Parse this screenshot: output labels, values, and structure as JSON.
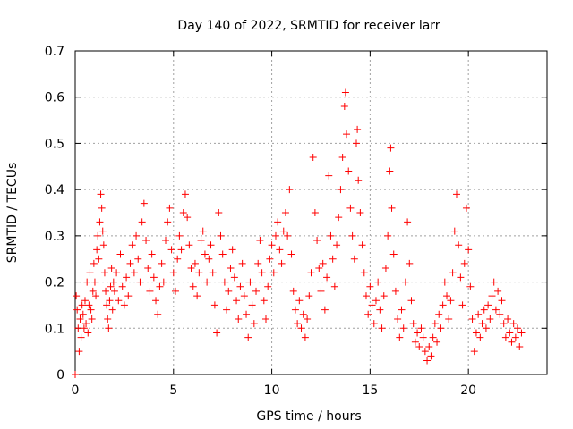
{
  "chart_data": {
    "type": "scatter",
    "title": "Day 140 of 2022, SRMTID for receiver larr",
    "xlabel": "GPS time / hours",
    "ylabel": "SRMTID / TECUs",
    "xlim": [
      0,
      24
    ],
    "ylim": [
      0,
      0.7
    ],
    "xticks": [
      0,
      5,
      10,
      15,
      20
    ],
    "yticks": [
      0,
      0.1,
      0.2,
      0.3,
      0.4,
      0.5,
      0.6,
      0.7
    ],
    "xtick_labels": [
      "0",
      "5",
      "10",
      "15",
      "20"
    ],
    "ytick_labels": [
      "0",
      "0.1",
      "0.2",
      "0.3",
      "0.4",
      "0.5",
      "0.6",
      "0.7"
    ],
    "grid": true,
    "marker": "+",
    "color": "#ff0000",
    "series": [
      {
        "name": "SRMTID",
        "points": [
          [
            0.0,
            0.0
          ],
          [
            0.05,
            0.17
          ],
          [
            0.1,
            0.14
          ],
          [
            0.15,
            0.1
          ],
          [
            0.2,
            0.05
          ],
          [
            0.25,
            0.12
          ],
          [
            0.3,
            0.08
          ],
          [
            0.35,
            0.15
          ],
          [
            0.4,
            0.13
          ],
          [
            0.45,
            0.1
          ],
          [
            0.5,
            0.16
          ],
          [
            0.55,
            0.11
          ],
          [
            0.6,
            0.2
          ],
          [
            0.65,
            0.09
          ],
          [
            0.7,
            0.15
          ],
          [
            0.75,
            0.22
          ],
          [
            0.8,
            0.14
          ],
          [
            0.85,
            0.12
          ],
          [
            0.9,
            0.18
          ],
          [
            0.95,
            0.24
          ],
          [
            1.0,
            0.2
          ],
          [
            1.05,
            0.17
          ],
          [
            1.1,
            0.27
          ],
          [
            1.15,
            0.3
          ],
          [
            1.2,
            0.25
          ],
          [
            1.25,
            0.33
          ],
          [
            1.3,
            0.39
          ],
          [
            1.35,
            0.36
          ],
          [
            1.4,
            0.31
          ],
          [
            1.45,
            0.28
          ],
          [
            1.5,
            0.22
          ],
          [
            1.55,
            0.18
          ],
          [
            1.6,
            0.15
          ],
          [
            1.65,
            0.12
          ],
          [
            1.7,
            0.1
          ],
          [
            1.75,
            0.16
          ],
          [
            1.8,
            0.19
          ],
          [
            1.85,
            0.23
          ],
          [
            1.9,
            0.14
          ],
          [
            1.95,
            0.2
          ],
          [
            2.0,
            0.18
          ],
          [
            2.1,
            0.22
          ],
          [
            2.2,
            0.16
          ],
          [
            2.3,
            0.26
          ],
          [
            2.4,
            0.19
          ],
          [
            2.5,
            0.15
          ],
          [
            2.6,
            0.21
          ],
          [
            2.7,
            0.17
          ],
          [
            2.8,
            0.24
          ],
          [
            2.9,
            0.28
          ],
          [
            3.0,
            0.22
          ],
          [
            3.1,
            0.3
          ],
          [
            3.2,
            0.25
          ],
          [
            3.3,
            0.2
          ],
          [
            3.4,
            0.33
          ],
          [
            3.5,
            0.37
          ],
          [
            3.6,
            0.29
          ],
          [
            3.7,
            0.23
          ],
          [
            3.8,
            0.18
          ],
          [
            3.9,
            0.26
          ],
          [
            4.0,
            0.21
          ],
          [
            4.1,
            0.16
          ],
          [
            4.2,
            0.13
          ],
          [
            4.3,
            0.19
          ],
          [
            4.4,
            0.24
          ],
          [
            4.5,
            0.2
          ],
          [
            4.6,
            0.29
          ],
          [
            4.7,
            0.33
          ],
          [
            4.8,
            0.36
          ],
          [
            4.9,
            0.27
          ],
          [
            5.0,
            0.22
          ],
          [
            5.1,
            0.18
          ],
          [
            5.2,
            0.25
          ],
          [
            5.3,
            0.3
          ],
          [
            5.4,
            0.27
          ],
          [
            5.5,
            0.35
          ],
          [
            5.6,
            0.39
          ],
          [
            5.7,
            0.34
          ],
          [
            5.8,
            0.28
          ],
          [
            5.9,
            0.23
          ],
          [
            6.0,
            0.19
          ],
          [
            6.1,
            0.24
          ],
          [
            6.2,
            0.17
          ],
          [
            6.3,
            0.22
          ],
          [
            6.4,
            0.29
          ],
          [
            6.5,
            0.31
          ],
          [
            6.6,
            0.26
          ],
          [
            6.7,
            0.2
          ],
          [
            6.8,
            0.25
          ],
          [
            6.9,
            0.28
          ],
          [
            7.0,
            0.22
          ],
          [
            7.1,
            0.15
          ],
          [
            7.2,
            0.09
          ],
          [
            7.3,
            0.35
          ],
          [
            7.4,
            0.3
          ],
          [
            7.5,
            0.26
          ],
          [
            7.6,
            0.2
          ],
          [
            7.7,
            0.14
          ],
          [
            7.8,
            0.18
          ],
          [
            7.9,
            0.23
          ],
          [
            8.0,
            0.27
          ],
          [
            8.1,
            0.21
          ],
          [
            8.2,
            0.16
          ],
          [
            8.3,
            0.12
          ],
          [
            8.4,
            0.19
          ],
          [
            8.5,
            0.24
          ],
          [
            8.6,
            0.17
          ],
          [
            8.7,
            0.13
          ],
          [
            8.8,
            0.08
          ],
          [
            8.9,
            0.2
          ],
          [
            9.0,
            0.15
          ],
          [
            9.1,
            0.11
          ],
          [
            9.2,
            0.18
          ],
          [
            9.3,
            0.24
          ],
          [
            9.4,
            0.29
          ],
          [
            9.5,
            0.22
          ],
          [
            9.6,
            0.16
          ],
          [
            9.7,
            0.12
          ],
          [
            9.8,
            0.19
          ],
          [
            9.9,
            0.25
          ],
          [
            10.0,
            0.28
          ],
          [
            10.1,
            0.22
          ],
          [
            10.2,
            0.3
          ],
          [
            10.3,
            0.33
          ],
          [
            10.4,
            0.27
          ],
          [
            10.5,
            0.24
          ],
          [
            10.6,
            0.31
          ],
          [
            10.7,
            0.35
          ],
          [
            10.8,
            0.3
          ],
          [
            10.9,
            0.4
          ],
          [
            11.0,
            0.26
          ],
          [
            11.1,
            0.18
          ],
          [
            11.2,
            0.14
          ],
          [
            11.3,
            0.11
          ],
          [
            11.4,
            0.16
          ],
          [
            11.5,
            0.1
          ],
          [
            11.6,
            0.13
          ],
          [
            11.7,
            0.08
          ],
          [
            11.8,
            0.12
          ],
          [
            11.9,
            0.17
          ],
          [
            12.0,
            0.22
          ],
          [
            12.1,
            0.47
          ],
          [
            12.2,
            0.35
          ],
          [
            12.3,
            0.29
          ],
          [
            12.4,
            0.23
          ],
          [
            12.5,
            0.18
          ],
          [
            12.6,
            0.24
          ],
          [
            12.7,
            0.14
          ],
          [
            12.8,
            0.21
          ],
          [
            12.9,
            0.43
          ],
          [
            13.0,
            0.3
          ],
          [
            13.1,
            0.25
          ],
          [
            13.2,
            0.19
          ],
          [
            13.3,
            0.28
          ],
          [
            13.4,
            0.34
          ],
          [
            13.5,
            0.4
          ],
          [
            13.6,
            0.47
          ],
          [
            13.7,
            0.58
          ],
          [
            13.75,
            0.61
          ],
          [
            13.8,
            0.52
          ],
          [
            13.9,
            0.44
          ],
          [
            14.0,
            0.36
          ],
          [
            14.1,
            0.3
          ],
          [
            14.2,
            0.25
          ],
          [
            14.3,
            0.5
          ],
          [
            14.35,
            0.53
          ],
          [
            14.4,
            0.42
          ],
          [
            14.5,
            0.35
          ],
          [
            14.6,
            0.28
          ],
          [
            14.7,
            0.22
          ],
          [
            14.8,
            0.17
          ],
          [
            14.9,
            0.13
          ],
          [
            15.0,
            0.19
          ],
          [
            15.1,
            0.15
          ],
          [
            15.2,
            0.11
          ],
          [
            15.3,
            0.16
          ],
          [
            15.4,
            0.2
          ],
          [
            15.5,
            0.14
          ],
          [
            15.6,
            0.1
          ],
          [
            15.7,
            0.17
          ],
          [
            15.8,
            0.23
          ],
          [
            15.9,
            0.3
          ],
          [
            16.0,
            0.44
          ],
          [
            16.05,
            0.49
          ],
          [
            16.1,
            0.36
          ],
          [
            16.2,
            0.26
          ],
          [
            16.3,
            0.18
          ],
          [
            16.4,
            0.12
          ],
          [
            16.5,
            0.08
          ],
          [
            16.6,
            0.14
          ],
          [
            16.7,
            0.1
          ],
          [
            16.8,
            0.2
          ],
          [
            16.9,
            0.33
          ],
          [
            17.0,
            0.24
          ],
          [
            17.1,
            0.16
          ],
          [
            17.2,
            0.11
          ],
          [
            17.3,
            0.07
          ],
          [
            17.4,
            0.09
          ],
          [
            17.5,
            0.06
          ],
          [
            17.6,
            0.1
          ],
          [
            17.7,
            0.08
          ],
          [
            17.8,
            0.05
          ],
          [
            17.9,
            0.03
          ],
          [
            18.0,
            0.06
          ],
          [
            18.1,
            0.04
          ],
          [
            18.2,
            0.08
          ],
          [
            18.3,
            0.11
          ],
          [
            18.4,
            0.07
          ],
          [
            18.5,
            0.13
          ],
          [
            18.6,
            0.1
          ],
          [
            18.7,
            0.15
          ],
          [
            18.8,
            0.2
          ],
          [
            18.9,
            0.17
          ],
          [
            19.0,
            0.12
          ],
          [
            19.1,
            0.16
          ],
          [
            19.2,
            0.22
          ],
          [
            19.3,
            0.31
          ],
          [
            19.4,
            0.39
          ],
          [
            19.5,
            0.28
          ],
          [
            19.6,
            0.21
          ],
          [
            19.7,
            0.15
          ],
          [
            19.8,
            0.24
          ],
          [
            19.9,
            0.36
          ],
          [
            20.0,
            0.27
          ],
          [
            20.1,
            0.19
          ],
          [
            20.2,
            0.12
          ],
          [
            20.3,
            0.05
          ],
          [
            20.4,
            0.09
          ],
          [
            20.5,
            0.13
          ],
          [
            20.6,
            0.08
          ],
          [
            20.7,
            0.11
          ],
          [
            20.8,
            0.14
          ],
          [
            20.9,
            0.1
          ],
          [
            21.0,
            0.15
          ],
          [
            21.1,
            0.12
          ],
          [
            21.2,
            0.17
          ],
          [
            21.3,
            0.2
          ],
          [
            21.4,
            0.14
          ],
          [
            21.5,
            0.18
          ],
          [
            21.6,
            0.13
          ],
          [
            21.7,
            0.16
          ],
          [
            21.8,
            0.11
          ],
          [
            21.9,
            0.08
          ],
          [
            22.0,
            0.12
          ],
          [
            22.1,
            0.09
          ],
          [
            22.2,
            0.07
          ],
          [
            22.3,
            0.11
          ],
          [
            22.4,
            0.08
          ],
          [
            22.5,
            0.1
          ],
          [
            22.6,
            0.06
          ],
          [
            22.7,
            0.09
          ]
        ]
      }
    ]
  }
}
